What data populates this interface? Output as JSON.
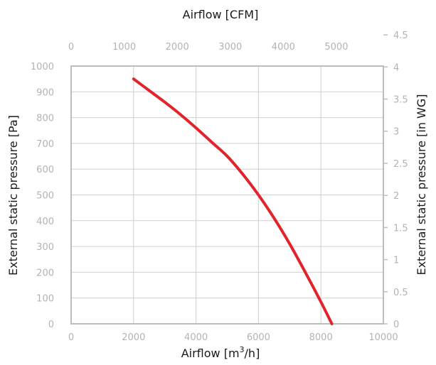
{
  "chart_data": {
    "type": "line",
    "title": "",
    "xlabel_top": "Airflow [CFM]",
    "xlabel_bottom_prefix": "Airflow [m",
    "xlabel_bottom_sup": "3",
    "xlabel_bottom_suffix": "/h]",
    "ylabel_left": "External static pressure [Pa]",
    "ylabel_right": "External static pressure [in WG]",
    "xlim": [
      0,
      10000
    ],
    "ylim": [
      0,
      1000
    ],
    "x_ticks": [
      "0",
      "2000",
      "4000",
      "6000",
      "8000",
      "10000"
    ],
    "y_ticks": [
      "0",
      "100",
      "200",
      "300",
      "400",
      "500",
      "600",
      "700",
      "800",
      "900",
      "1000"
    ],
    "top_ticks": [
      {
        "value": 0,
        "label": "0"
      },
      {
        "value": 1000,
        "label": "1000"
      },
      {
        "value": 2000,
        "label": "2000"
      },
      {
        "value": 3000,
        "label": "3000"
      },
      {
        "value": 4000,
        "label": "4000"
      },
      {
        "value": 5000,
        "label": "5000"
      }
    ],
    "right_ticks": [
      {
        "value": 0,
        "label": "0"
      },
      {
        "value": 0.5,
        "label": "0.5"
      },
      {
        "value": 1,
        "label": "1"
      },
      {
        "value": 1.5,
        "label": "1.5"
      },
      {
        "value": 2,
        "label": "2"
      },
      {
        "value": 2.5,
        "label": "2.5"
      },
      {
        "value": 3,
        "label": "3"
      },
      {
        "value": 3.5,
        "label": "3.5"
      },
      {
        "value": 4,
        "label": "4"
      },
      {
        "value": 4.5,
        "label": "4.5"
      }
    ],
    "grid": true,
    "line_color": "#e3232b",
    "series": [
      {
        "x": [
          2000,
          2500,
          3000,
          3500,
          4000,
          4500,
          5000,
          5500,
          6000,
          6500,
          7000,
          7500,
          8000,
          8350
        ],
        "y": [
          950,
          905,
          860,
          812,
          760,
          705,
          650,
          580,
          500,
          410,
          310,
          200,
          85,
          0
        ]
      }
    ]
  }
}
